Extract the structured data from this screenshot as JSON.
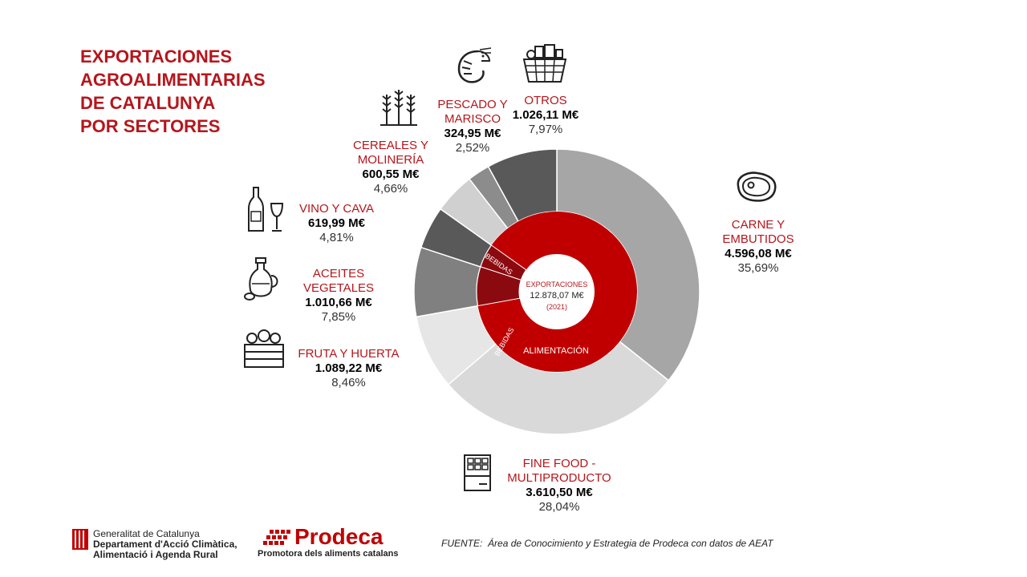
{
  "title_lines": [
    "EXPORTACIONES",
    "AGROALIMENTARIAS",
    "DE CATALUNYA",
    "POR SECTORES"
  ],
  "chart_data": {
    "type": "pie",
    "center": {
      "line1": "EXPORTACIONES",
      "line2": "12.878,07 M€",
      "line3": "(2021)"
    },
    "total": 12878.07,
    "inner_ring": [
      {
        "label": "ALIMENTACIÓN",
        "value": 11247.42,
        "color": "#c00000"
      },
      {
        "label": "BEBIDAS",
        "value": 619.99,
        "color": "#8b0a10"
      },
      {
        "label": "BEBIDAS",
        "value": 1010.66,
        "color": "#8b0a10"
      }
    ],
    "outer_ring": [
      {
        "name_lines": [
          "CARNE Y",
          "EMBUTIDOS"
        ],
        "value": 4596.08,
        "value_text": "4.596,08 M€",
        "pct": "35,69%",
        "color": "#a6a6a6",
        "icon": "meat-icon"
      },
      {
        "name_lines": [
          "FINE FOOD -",
          "MULTIPRODUCTO"
        ],
        "value": 3610.5,
        "value_text": "3.610,50 M€",
        "pct": "28,04%",
        "color": "#d9d9d9",
        "icon": "chocolate-icon"
      },
      {
        "name_lines": [
          "FRUTA Y HUERTA"
        ],
        "value": 1089.22,
        "value_text": "1.089,22 M€",
        "pct": "8,46%",
        "color": "#e6e6e6",
        "icon": "vegetable-crate-icon"
      },
      {
        "name_lines": [
          "ACEITES",
          "VEGETALES"
        ],
        "value": 1010.66,
        "value_text": "1.010,66 M€",
        "pct": "7,85%",
        "color": "#808080",
        "icon": "oil-bottle-icon"
      },
      {
        "name_lines": [
          "VINO Y CAVA"
        ],
        "value": 619.99,
        "value_text": "619,99 M€",
        "pct": "4,81%",
        "color": "#595959",
        "icon": "wine-icon"
      },
      {
        "name_lines": [
          "CEREALES Y",
          "MOLINERÍA"
        ],
        "value": 600.55,
        "value_text": "600,55 M€",
        "pct": "4,66%",
        "color": "#d0d0d0",
        "icon": "wheat-icon"
      },
      {
        "name_lines": [
          "PESCADO Y",
          "MARISCO"
        ],
        "value": 324.95,
        "value_text": "324,95 M€",
        "pct": "2,52%",
        "color": "#8c8c8c",
        "icon": "shrimp-icon"
      },
      {
        "name_lines": [
          "OTROS"
        ],
        "value": 1026.11,
        "value_text": "1.026,11 M€",
        "pct": "7,97%",
        "color": "#595959",
        "icon": "basket-icon"
      }
    ]
  },
  "footer": {
    "gov_line1": "Generalitat de Catalunya",
    "gov_line2": "Departament d'Acció Climàtica,",
    "gov_line3": "Alimentació i Agenda Rural",
    "prodeca_name": "Prodeca",
    "prodeca_tagline": "Promotora dels aliments catalans",
    "source_label": "FUENTE:",
    "source_text": "Área de Conocimiento y Estrategia de Prodeca con datos de AEAT"
  },
  "colors": {
    "brand_red": "#b5161c"
  }
}
